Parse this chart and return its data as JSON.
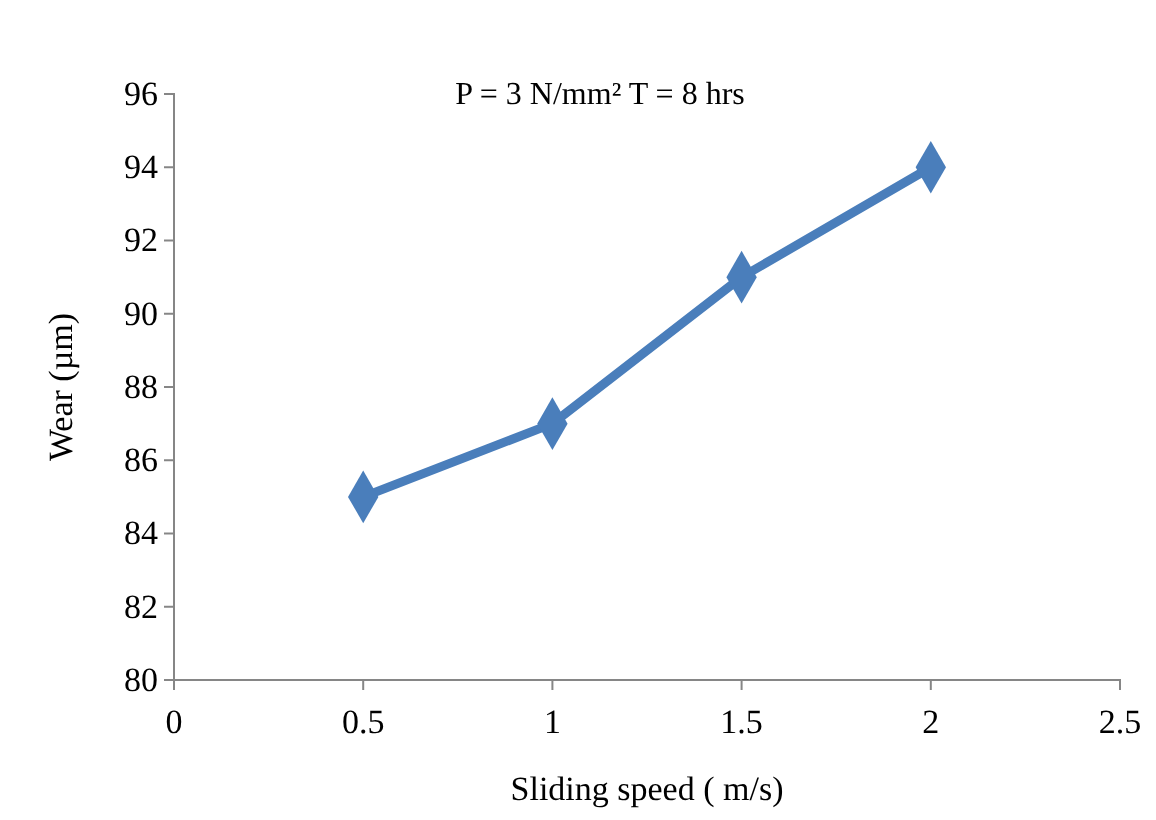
{
  "chart_data": {
    "type": "line",
    "title": "P = 3 N/mm²  T = 8 hrs",
    "xlabel": "Sliding speed ( m/s)",
    "ylabel": "Wear (µm)",
    "x": [
      0.5,
      1,
      1.5,
      2
    ],
    "series": [
      {
        "color": "#4a7ebb",
        "values": [
          85,
          87,
          91,
          94
        ]
      }
    ],
    "xlim": [
      0,
      2.5
    ],
    "xticks": [
      0,
      0.5,
      1,
      1.5,
      2,
      2.5
    ],
    "ylim": [
      80,
      96
    ],
    "yticks": [
      80,
      82,
      84,
      86,
      88,
      90,
      92,
      94,
      96
    ],
    "grid": false,
    "marker": "diamond",
    "line_style": "solid"
  }
}
